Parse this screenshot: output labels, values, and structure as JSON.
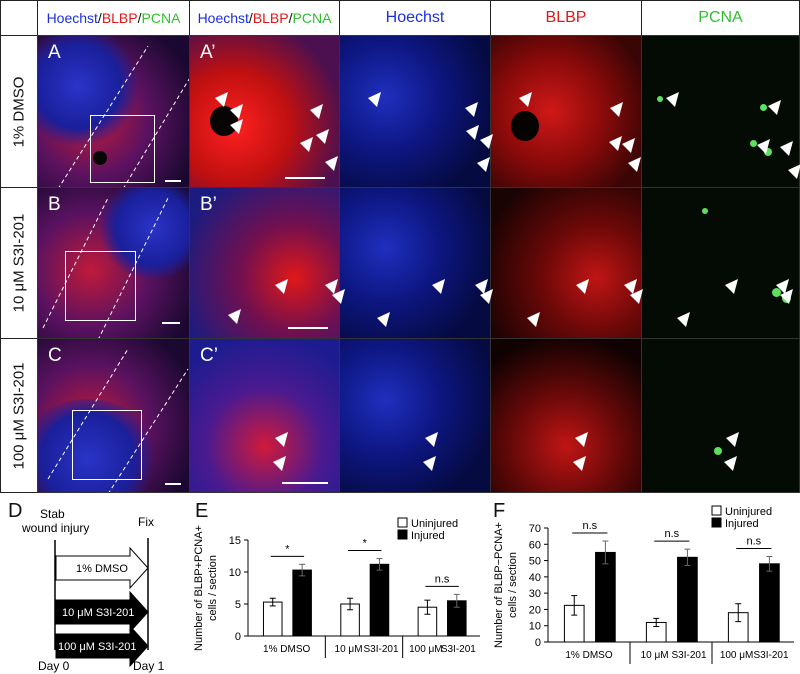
{
  "header": {
    "merge_hoechst": "Hoechst",
    "merge_blbp": "BLBP",
    "merge_pcna": "PCNA",
    "slash": "/",
    "col_hoechst": "Hoechst",
    "col_blbp": "BLBP",
    "col_pcna": "PCNA"
  },
  "colors": {
    "hoechst": "#1a2fe0",
    "blbp": "#e01818",
    "pcna": "#2fbf2f"
  },
  "rows": [
    {
      "label": "1% DMSO",
      "panel": "A",
      "zoom": "A’"
    },
    {
      "label": "10 μM S3I-201",
      "panel": "B",
      "zoom": "B’"
    },
    {
      "label": "100 μM S3I-201",
      "panel": "C",
      "zoom": "C’"
    }
  ],
  "schematic": {
    "label": "D",
    "stab": "Stab",
    "wound": "wound injury",
    "fix": "Fix",
    "day0": "Day 0",
    "day1": "Day 1",
    "conditions": [
      "1% DMSO",
      "10 μM S3I-201",
      "100 μM S3I-201"
    ]
  },
  "chart_data": [
    {
      "label": "E",
      "type": "bar",
      "ylabel": "Number of BLBP+PCNA+ cells / section",
      "ylim": [
        0,
        15
      ],
      "yticks": [
        0,
        5,
        10,
        15
      ],
      "groups": [
        "1% DMSO",
        "10 μM S3I-201",
        "100 μM S3I-201"
      ],
      "group_labels": [
        [
          "1% DMSO"
        ],
        [
          "10 μM",
          "S3I-201"
        ],
        [
          "100 μM",
          "S3I-201"
        ]
      ],
      "series": [
        {
          "name": "Uninjured",
          "values": [
            5.3,
            5.0,
            4.5
          ],
          "errors": [
            0.6,
            0.9,
            1.1
          ]
        },
        {
          "name": "Injured",
          "values": [
            10.3,
            11.2,
            5.5
          ],
          "errors": [
            0.9,
            0.9,
            1.0
          ]
        }
      ],
      "significance": [
        "*",
        "*",
        "n.s"
      ],
      "legend": "top-right"
    },
    {
      "label": "F",
      "type": "bar",
      "ylabel": "Number of BLBP−PCNA+ cells / section",
      "ylim": [
        0,
        70
      ],
      "yticks": [
        0,
        10,
        20,
        30,
        40,
        50,
        60,
        70
      ],
      "groups": [
        "1% DMSO",
        "10 μM S3I-201",
        "100 μM S3I-201"
      ],
      "group_labels": [
        [
          "1% DMSO"
        ],
        [
          "10 μM",
          "S3I-201"
        ],
        [
          "100 μM",
          "S3I-201"
        ]
      ],
      "series": [
        {
          "name": "Uninjured",
          "values": [
            22.5,
            12.0,
            18.0
          ],
          "errors": [
            6.0,
            2.5,
            5.5
          ]
        },
        {
          "name": "Injured",
          "values": [
            55.0,
            52.0,
            48.0
          ],
          "errors": [
            7.0,
            5.0,
            4.5
          ]
        }
      ],
      "significance": [
        "n.s",
        "n.s",
        "n.s"
      ],
      "legend": "top-right"
    }
  ]
}
